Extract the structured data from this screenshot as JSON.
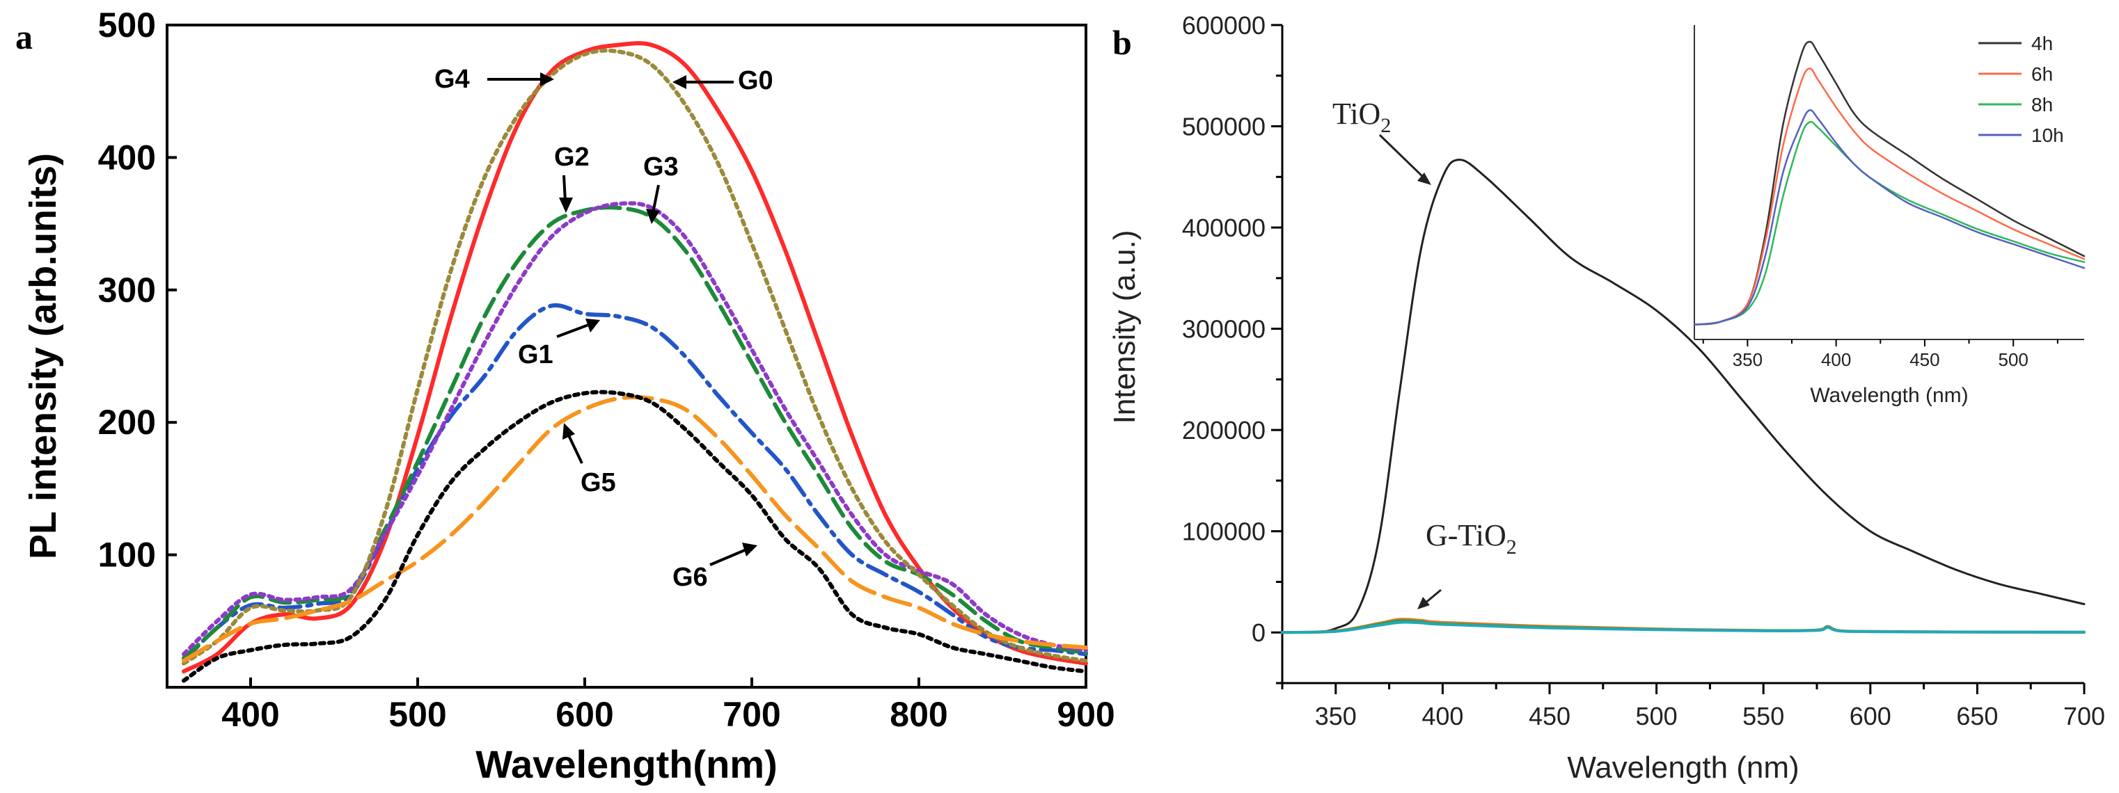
{
  "chart_data": [
    {
      "type": "line",
      "panel_label": "a",
      "title": "",
      "xlabel": "Wavelength(nm)",
      "ylabel": "PL intensity (arb.units)",
      "xlim": [
        350,
        900
      ],
      "ylim": [
        0,
        500
      ],
      "xticks": [
        400,
        500,
        600,
        700,
        800,
        900
      ],
      "yticks": [
        100,
        200,
        300,
        400,
        500
      ],
      "series": [
        {
          "name": "G0",
          "color": "#ff2a2a",
          "dash": "solid",
          "x": [
            360,
            380,
            400,
            420,
            440,
            460,
            480,
            500,
            520,
            540,
            560,
            580,
            600,
            620,
            640,
            660,
            680,
            700,
            720,
            740,
            760,
            780,
            800,
            820,
            840,
            860,
            880,
            900
          ],
          "y": [
            12,
            25,
            48,
            55,
            52,
            62,
            110,
            190,
            280,
            360,
            425,
            465,
            480,
            485,
            485,
            470,
            435,
            390,
            330,
            260,
            190,
            130,
            90,
            60,
            40,
            28,
            22,
            18
          ]
        },
        {
          "name": "G1",
          "color": "#2255c8",
          "dash": "dashdot",
          "x": [
            360,
            380,
            400,
            420,
            440,
            460,
            480,
            500,
            520,
            540,
            560,
            580,
            600,
            620,
            640,
            660,
            680,
            700,
            720,
            740,
            760,
            780,
            800,
            820,
            840,
            860,
            880,
            900
          ],
          "y": [
            20,
            45,
            62,
            60,
            63,
            70,
            115,
            165,
            205,
            235,
            270,
            288,
            282,
            280,
            272,
            250,
            220,
            192,
            165,
            130,
            100,
            85,
            72,
            55,
            38,
            30,
            28,
            25
          ]
        },
        {
          "name": "G2",
          "color": "#1d8a3a",
          "dash": "dash",
          "x": [
            360,
            380,
            400,
            420,
            440,
            460,
            480,
            500,
            520,
            540,
            560,
            580,
            600,
            620,
            640,
            660,
            680,
            700,
            720,
            740,
            760,
            780,
            800,
            820,
            840,
            860,
            880,
            900
          ],
          "y": [
            22,
            45,
            68,
            64,
            66,
            72,
            118,
            170,
            225,
            280,
            322,
            350,
            360,
            362,
            355,
            330,
            290,
            245,
            200,
            160,
            120,
            95,
            85,
            70,
            50,
            35,
            30,
            26
          ]
        },
        {
          "name": "G3",
          "color": "#8e3ac8",
          "dash": "dot",
          "x": [
            360,
            380,
            400,
            420,
            440,
            460,
            480,
            500,
            520,
            540,
            560,
            580,
            600,
            620,
            640,
            660,
            680,
            700,
            720,
            740,
            760,
            780,
            800,
            820,
            840,
            860,
            880,
            900
          ],
          "y": [
            25,
            50,
            70,
            66,
            68,
            74,
            115,
            160,
            210,
            260,
            305,
            340,
            358,
            365,
            362,
            340,
            300,
            255,
            210,
            170,
            130,
            100,
            88,
            78,
            55,
            40,
            32,
            28
          ]
        },
        {
          "name": "G4",
          "color": "#9a8a3a",
          "dash": "dot",
          "x": [
            360,
            380,
            400,
            420,
            440,
            460,
            480,
            500,
            520,
            540,
            560,
            580,
            600,
            620,
            640,
            660,
            680,
            700,
            720,
            740,
            760,
            780,
            800,
            820,
            840,
            860,
            880,
            900
          ],
          "y": [
            18,
            35,
            60,
            58,
            58,
            68,
            130,
            225,
            315,
            385,
            432,
            462,
            478,
            480,
            470,
            440,
            395,
            335,
            270,
            205,
            150,
            110,
            85,
            62,
            42,
            30,
            24,
            20
          ]
        },
        {
          "name": "G5",
          "color": "#f7941d",
          "dash": "longdash",
          "x": [
            360,
            380,
            400,
            420,
            440,
            460,
            480,
            500,
            520,
            540,
            560,
            580,
            600,
            620,
            640,
            660,
            680,
            700,
            720,
            740,
            760,
            780,
            800,
            820,
            840,
            860,
            880,
            900
          ],
          "y": [
            20,
            35,
            48,
            52,
            58,
            65,
            80,
            95,
            115,
            140,
            168,
            195,
            210,
            218,
            218,
            210,
            188,
            160,
            130,
            105,
            80,
            68,
            60,
            48,
            40,
            35,
            32,
            30
          ]
        },
        {
          "name": "G6",
          "color": "#000000",
          "dash": "dot",
          "x": [
            360,
            380,
            400,
            420,
            440,
            460,
            480,
            500,
            520,
            540,
            560,
            580,
            600,
            620,
            640,
            660,
            680,
            700,
            720,
            740,
            760,
            780,
            800,
            820,
            840,
            860,
            880,
            900
          ],
          "y": [
            5,
            22,
            28,
            32,
            33,
            38,
            65,
            115,
            155,
            180,
            200,
            215,
            222,
            222,
            215,
            195,
            170,
            145,
            112,
            90,
            55,
            45,
            40,
            30,
            25,
            20,
            15,
            12
          ]
        }
      ],
      "annotations": [
        "G0",
        "G1",
        "G2",
        "G3",
        "G4",
        "G5",
        "G6"
      ]
    },
    {
      "type": "line",
      "panel_label": "b",
      "title": "",
      "xlabel": "Wavelength (nm)",
      "ylabel": "Intensity (a.u.)",
      "xlim": [
        325,
        700
      ],
      "ylim": [
        -50000,
        600000
      ],
      "xticks": [
        350,
        400,
        450,
        500,
        550,
        600,
        650,
        700
      ],
      "yticks": [
        0,
        100000,
        200000,
        300000,
        400000,
        500000,
        600000
      ],
      "series": [
        {
          "name": "TiO2",
          "color": "#222222",
          "x": [
            325,
            340,
            350,
            360,
            370,
            380,
            390,
            400,
            408,
            420,
            440,
            460,
            480,
            500,
            520,
            540,
            560,
            580,
            600,
            620,
            640,
            660,
            680,
            700
          ],
          "y": [
            0,
            500,
            4000,
            20000,
            90000,
            240000,
            380000,
            450000,
            467000,
            450000,
            410000,
            370000,
            345000,
            318000,
            280000,
            230000,
            180000,
            135000,
            100000,
            80000,
            62000,
            48000,
            38000,
            28000
          ]
        },
        {
          "name": "G-TiO2 (orange)",
          "color": "#e07a20",
          "x": [
            325,
            350,
            370,
            380,
            390,
            400,
            450,
            500,
            550,
            575,
            580,
            585,
            600,
            650,
            700
          ],
          "y": [
            0,
            1500,
            9000,
            13000,
            12000,
            10000,
            6000,
            3500,
            2000,
            2500,
            6000,
            2000,
            1000,
            500,
            300
          ]
        },
        {
          "name": "G-TiO2 (green)",
          "color": "#2e9a4a",
          "x": [
            325,
            350,
            370,
            380,
            390,
            400,
            450,
            500,
            550,
            575,
            580,
            585,
            600,
            650,
            700
          ],
          "y": [
            0,
            1200,
            8000,
            11500,
            10500,
            8500,
            5000,
            3000,
            1800,
            2200,
            5500,
            1800,
            900,
            400,
            250
          ]
        },
        {
          "name": "G-TiO2 (cyan)",
          "color": "#22a8b8",
          "x": [
            325,
            350,
            370,
            380,
            390,
            400,
            450,
            500,
            550,
            575,
            580,
            585,
            600,
            650,
            700
          ],
          "y": [
            0,
            1000,
            7000,
            10000,
            9500,
            8000,
            4500,
            2800,
            1600,
            2000,
            5000,
            1600,
            800,
            350,
            200
          ]
        }
      ],
      "annotations": [
        "TiO",
        "2",
        "G-TiO",
        "2"
      ],
      "inset": {
        "type": "line",
        "xlabel": "Wavelength (nm)",
        "ylabel": "",
        "xlim": [
          320,
          540
        ],
        "ylim": [
          0,
          1
        ],
        "xticks": [
          350,
          400,
          450,
          500
        ],
        "legend_position": "top-right",
        "series": [
          {
            "name": "4h",
            "color": "#333333",
            "x": [
              320,
              335,
              350,
              360,
              370,
              380,
              385,
              390,
              400,
              410,
              420,
              440,
              460,
              480,
              500,
              520,
              540
            ],
            "y": [
              0.05,
              0.06,
              0.12,
              0.35,
              0.72,
              0.95,
              1.0,
              0.96,
              0.86,
              0.76,
              0.7,
              0.62,
              0.54,
              0.47,
              0.4,
              0.34,
              0.28
            ]
          },
          {
            "name": "6h",
            "color": "#ff6a4a",
            "x": [
              320,
              335,
              350,
              360,
              370,
              380,
              385,
              390,
              400,
              410,
              420,
              440,
              460,
              480,
              500,
              520,
              540
            ],
            "y": [
              0.05,
              0.06,
              0.12,
              0.33,
              0.65,
              0.86,
              0.91,
              0.87,
              0.78,
              0.7,
              0.64,
              0.56,
              0.49,
              0.43,
              0.37,
              0.32,
              0.27
            ]
          },
          {
            "name": "8h",
            "color": "#2eb85a",
            "x": [
              320,
              335,
              350,
              360,
              370,
              380,
              385,
              390,
              400,
              410,
              420,
              440,
              460,
              480,
              500,
              520,
              540
            ],
            "y": [
              0.05,
              0.06,
              0.1,
              0.22,
              0.48,
              0.68,
              0.73,
              0.71,
              0.65,
              0.59,
              0.54,
              0.47,
              0.42,
              0.37,
              0.33,
              0.29,
              0.26
            ]
          },
          {
            "name": "10h",
            "color": "#5560c0",
            "x": [
              320,
              335,
              350,
              360,
              370,
              380,
              385,
              390,
              400,
              410,
              420,
              440,
              460,
              480,
              500,
              520,
              540
            ],
            "y": [
              0.05,
              0.06,
              0.11,
              0.28,
              0.56,
              0.72,
              0.77,
              0.74,
              0.66,
              0.59,
              0.54,
              0.46,
              0.41,
              0.36,
              0.32,
              0.28,
              0.24
            ]
          }
        ]
      }
    }
  ]
}
